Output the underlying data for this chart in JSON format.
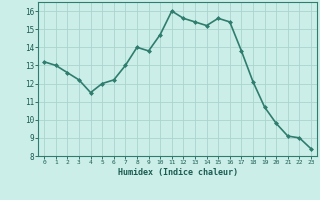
{
  "x": [
    0,
    1,
    2,
    3,
    4,
    5,
    6,
    7,
    8,
    9,
    10,
    11,
    12,
    13,
    14,
    15,
    16,
    17,
    18,
    19,
    20,
    21,
    22,
    23
  ],
  "y": [
    13.2,
    13.0,
    12.6,
    12.2,
    11.5,
    12.0,
    12.2,
    13.0,
    14.0,
    13.8,
    14.7,
    16.0,
    15.6,
    15.4,
    15.2,
    15.6,
    15.4,
    13.8,
    12.1,
    10.7,
    9.8,
    9.1,
    9.0,
    8.4
  ],
  "line_color": "#2e7d6e",
  "marker": "D",
  "marker_size": 2,
  "bg_color": "#cceee8",
  "grid_color": "#aad4ce",
  "xlabel": "Humidex (Indice chaleur)",
  "xlabel_color": "#1a5c52",
  "tick_color": "#1a5c52",
  "ylim": [
    8,
    16.5
  ],
  "xlim": [
    -0.5,
    23.5
  ],
  "yticks": [
    8,
    9,
    10,
    11,
    12,
    13,
    14,
    15,
    16
  ],
  "xticks": [
    0,
    1,
    2,
    3,
    4,
    5,
    6,
    7,
    8,
    9,
    10,
    11,
    12,
    13,
    14,
    15,
    16,
    17,
    18,
    19,
    20,
    21,
    22,
    23
  ],
  "linewidth": 1.2,
  "border_color": "#2e7d6e"
}
